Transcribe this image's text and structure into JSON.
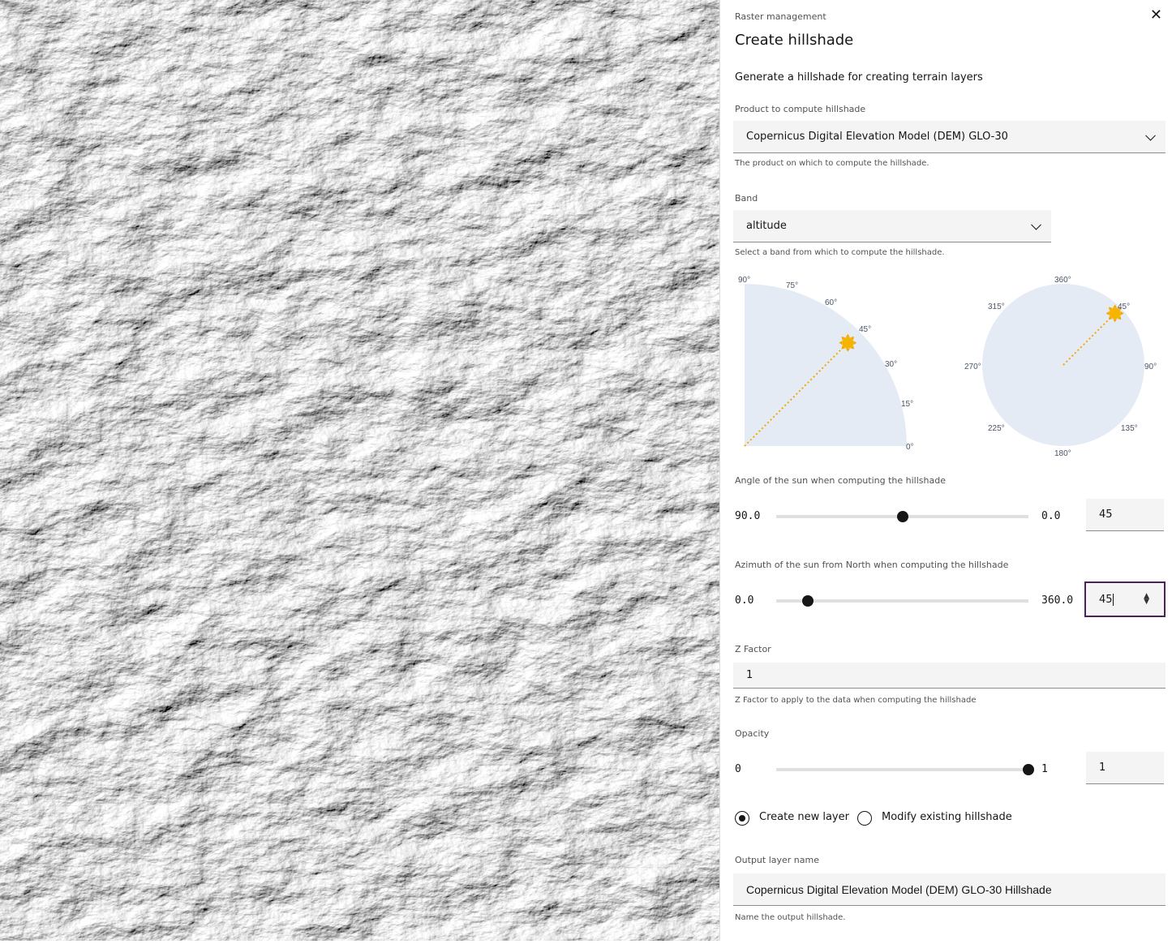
{
  "panel": {
    "breadcrumb": "Raster management",
    "title": "Create hillshade",
    "description": "Generate a hillshade for creating terrain layers",
    "product": {
      "label": "Product to compute hillshade",
      "value": "Copernicus Digital Elevation Model (DEM) GLO-30",
      "helper": "The product on which to compute the hillshade."
    },
    "band": {
      "label": "Band",
      "value": "altitude",
      "helper": "Select a band from which to compute the hillshade."
    },
    "elevation_diagram": {
      "ticks": [
        "90°",
        "75°",
        "60°",
        "45°",
        "30°",
        "15°",
        "0°"
      ],
      "sun_angle": 45
    },
    "azimuth_diagram": {
      "ticks": [
        "360°",
        "45°",
        "90°",
        "135°",
        "180°",
        "225°",
        "270°",
        "315°"
      ],
      "sun_azimuth": 45
    },
    "elevation": {
      "label": "Angle of the sun when computing the hillshade",
      "min_label": "90.0",
      "max_label": "0.0",
      "value": "45",
      "fraction": 0.5
    },
    "azimuth": {
      "label": "Azimuth of the sun from North when computing the hillshade",
      "min_label": "0.0",
      "max_label": "360.0",
      "value": "45",
      "fraction": 0.125,
      "focus_color": "#4a235a"
    },
    "zfactor": {
      "label": "Z Factor",
      "value": "1",
      "helper": "Z Factor to apply to the data when computing the hillshade"
    },
    "opacity": {
      "label": "Opacity",
      "min_label": "0",
      "max_label": "1",
      "value": "1",
      "fraction": 1
    },
    "mode": {
      "options": [
        {
          "label": "Create new layer",
          "selected": true
        },
        {
          "label": "Modify existing hillshade",
          "selected": false
        }
      ]
    },
    "output": {
      "label": "Output layer name",
      "value": "Copernicus Digital Elevation Model (DEM) GLO-30 Hillshade",
      "helper": "Name the output hillshade."
    },
    "sun_color": "#f5b400"
  }
}
